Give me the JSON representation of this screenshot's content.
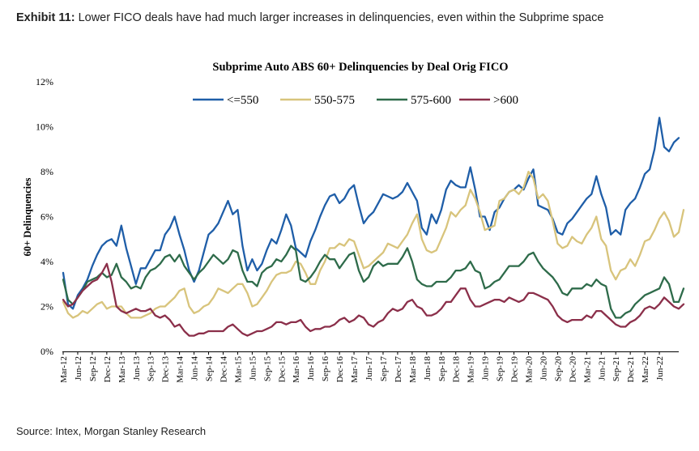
{
  "header": {
    "lead": "Exhibit 11:",
    "text": "Lower FICO deals have had much larger increases in delinquencies, even within the Subprime space"
  },
  "footer": {
    "source": "Source: Intex, Morgan Stanley Research"
  },
  "chart_data": {
    "type": "line",
    "title": "Subprime Auto ABS 60+ Delinquencies by Deal Orig FICO",
    "xlabel": "",
    "ylabel": "60+ Delinquencies",
    "ylim": [
      0,
      12
    ],
    "yticks": [
      "0%",
      "2%",
      "4%",
      "6%",
      "8%",
      "10%",
      "12%"
    ],
    "grid": false,
    "legend": "top",
    "start": "Mar-12",
    "xtick_labels": [
      "Mar-12",
      "Jun-12",
      "Sep-12",
      "Dec-12",
      "Mar-13",
      "Jun-13",
      "Sep-13",
      "Dec-13",
      "Mar-14",
      "Jun-14",
      "Sep-14",
      "Dec-14",
      "Mar-15",
      "Jun-15",
      "Sep-15",
      "Dec-15",
      "Mar-16",
      "Jun-16",
      "Sep-16",
      "Dec-16",
      "Mar-17",
      "Jun-17",
      "Sep-17",
      "Dec-17",
      "Mar-18",
      "Jun-18",
      "Sep-18",
      "Dec-18",
      "Mar-19",
      "Jun-19",
      "Sep-19",
      "Dec-19",
      "Mar-20",
      "Jun-20",
      "Sep-20",
      "Dec-20",
      "Mar-21",
      "Jun-21",
      "Sep-21",
      "Dec-21",
      "Mar-22",
      "Jun-22"
    ],
    "series": [
      {
        "name": "<=550",
        "color": "#1f5ea8",
        "values": [
          3.5,
          2.1,
          1.9,
          2.5,
          2.8,
          3.2,
          3.8,
          4.3,
          4.7,
          4.9,
          5.0,
          4.7,
          5.6,
          4.6,
          3.8,
          3.0,
          3.7,
          3.7,
          4.1,
          4.5,
          4.5,
          5.2,
          5.5,
          6.0,
          5.2,
          4.5,
          3.6,
          3.1,
          3.6,
          4.4,
          5.2,
          5.4,
          5.7,
          6.2,
          6.7,
          6.1,
          6.3,
          4.7,
          3.6,
          4.1,
          3.6,
          3.9,
          4.5,
          5.0,
          4.8,
          5.4,
          6.1,
          5.6,
          4.6,
          4.4,
          4.2,
          4.9,
          5.4,
          6.0,
          6.5,
          6.9,
          7.0,
          6.6,
          6.8,
          7.2,
          7.4,
          6.5,
          5.7,
          6.0,
          6.2,
          6.6,
          7.0,
          6.9,
          6.8,
          6.9,
          7.1,
          7.5,
          7.1,
          6.7,
          5.5,
          5.2,
          6.1,
          5.7,
          6.3,
          7.2,
          7.6,
          7.4,
          7.3,
          7.3,
          8.2,
          7.2,
          6.0,
          6.0,
          5.4,
          6.2,
          6.4,
          6.8,
          7.1,
          7.2,
          7.4,
          7.2,
          7.7,
          8.1,
          6.5,
          6.4,
          6.3,
          5.9,
          5.3,
          5.2,
          5.7,
          5.9,
          6.2,
          6.5,
          6.8,
          7.0,
          7.8,
          7.0,
          6.4,
          5.2,
          5.4,
          5.2,
          6.3,
          6.6,
          6.8,
          7.3,
          7.9,
          8.1,
          9.0,
          10.4,
          9.1,
          8.9,
          9.3,
          9.5
        ]
      },
      {
        "name": "550-575",
        "color": "#d8c47c",
        "values": [
          2.2,
          1.7,
          1.5,
          1.6,
          1.8,
          1.7,
          1.9,
          2.1,
          2.2,
          1.9,
          2.0,
          2.0,
          2.0,
          1.7,
          1.5,
          1.5,
          1.5,
          1.6,
          1.7,
          1.9,
          2.0,
          2.0,
          2.2,
          2.4,
          2.7,
          2.8,
          2.0,
          1.7,
          1.8,
          2.0,
          2.1,
          2.4,
          2.8,
          2.7,
          2.6,
          2.8,
          3.0,
          3.0,
          2.6,
          2.0,
          2.1,
          2.4,
          2.7,
          3.1,
          3.4,
          3.5,
          3.5,
          3.6,
          4.0,
          3.9,
          3.5,
          3.0,
          3.0,
          3.6,
          4.0,
          4.6,
          4.6,
          4.8,
          4.7,
          5.0,
          4.9,
          4.3,
          3.7,
          3.8,
          4.0,
          4.2,
          4.4,
          4.8,
          4.7,
          4.6,
          4.9,
          5.2,
          5.7,
          6.1,
          5.0,
          4.5,
          4.4,
          4.5,
          5.0,
          5.5,
          6.2,
          6.0,
          6.3,
          6.5,
          7.2,
          6.8,
          6.2,
          5.4,
          5.5,
          5.6,
          6.7,
          6.8,
          7.1,
          7.2,
          7.0,
          7.3,
          8.0,
          7.7,
          6.8,
          7.0,
          6.7,
          5.8,
          4.8,
          4.6,
          4.7,
          5.1,
          4.9,
          4.8,
          5.2,
          5.5,
          6.0,
          5.0,
          4.7,
          3.6,
          3.2,
          3.6,
          3.7,
          4.1,
          3.8,
          4.3,
          4.9,
          5.0,
          5.4,
          5.9,
          6.2,
          5.8,
          5.1,
          5.3,
          6.3
        ]
      },
      {
        "name": "575-600",
        "color": "#2e6b4a",
        "values": [
          3.2,
          2.3,
          2.1,
          2.4,
          2.7,
          3.1,
          3.2,
          3.3,
          3.5,
          3.3,
          3.4,
          3.9,
          3.3,
          3.1,
          2.8,
          2.9,
          2.8,
          3.3,
          3.6,
          3.7,
          3.9,
          4.2,
          4.3,
          4.0,
          4.3,
          3.8,
          3.5,
          3.2,
          3.5,
          3.7,
          4.0,
          4.3,
          4.1,
          3.9,
          4.1,
          4.5,
          4.4,
          3.6,
          3.1,
          3.1,
          2.9,
          3.5,
          3.7,
          3.8,
          4.1,
          4.0,
          4.3,
          4.7,
          4.5,
          3.2,
          3.1,
          3.3,
          3.6,
          4.0,
          4.3,
          4.1,
          4.1,
          3.7,
          4.0,
          4.3,
          4.4,
          3.6,
          3.1,
          3.3,
          3.8,
          4.0,
          3.8,
          3.9,
          3.9,
          3.9,
          4.2,
          4.6,
          4.0,
          3.2,
          3.0,
          2.9,
          2.9,
          3.1,
          3.1,
          3.1,
          3.3,
          3.6,
          3.6,
          3.7,
          4.0,
          3.6,
          3.5,
          2.8,
          2.9,
          3.1,
          3.2,
          3.5,
          3.8,
          3.8,
          3.8,
          4.0,
          4.3,
          4.4,
          4.0,
          3.7,
          3.5,
          3.3,
          3.0,
          2.6,
          2.5,
          2.8,
          2.8,
          2.8,
          3.0,
          2.9,
          3.2,
          3.0,
          2.9,
          1.9,
          1.5,
          1.5,
          1.7,
          1.8,
          2.1,
          2.3,
          2.5,
          2.6,
          2.7,
          2.8,
          3.3,
          3.0,
          2.2,
          2.2,
          2.8
        ]
      },
      {
        "name": ">600",
        "color": "#8b2f4a",
        "values": [
          2.3,
          2.0,
          2.1,
          2.4,
          2.7,
          2.9,
          3.1,
          3.2,
          3.5,
          3.9,
          3.1,
          2.0,
          1.8,
          1.7,
          1.8,
          1.9,
          1.8,
          1.8,
          1.9,
          1.6,
          1.5,
          1.6,
          1.4,
          1.1,
          1.2,
          0.9,
          0.7,
          0.7,
          0.8,
          0.8,
          0.9,
          0.9,
          0.9,
          0.9,
          1.1,
          1.2,
          1.0,
          0.8,
          0.7,
          0.8,
          0.9,
          0.9,
          1.0,
          1.1,
          1.3,
          1.3,
          1.2,
          1.3,
          1.3,
          1.4,
          1.1,
          0.9,
          1.0,
          1.0,
          1.1,
          1.1,
          1.2,
          1.4,
          1.5,
          1.3,
          1.4,
          1.6,
          1.5,
          1.2,
          1.1,
          1.3,
          1.4,
          1.7,
          1.9,
          1.8,
          1.9,
          2.2,
          2.3,
          2.0,
          1.9,
          1.6,
          1.6,
          1.7,
          1.9,
          2.2,
          2.2,
          2.5,
          2.8,
          2.8,
          2.3,
          2.0,
          2.0,
          2.1,
          2.2,
          2.3,
          2.3,
          2.2,
          2.4,
          2.3,
          2.2,
          2.3,
          2.6,
          2.6,
          2.5,
          2.4,
          2.3,
          2.0,
          1.6,
          1.4,
          1.3,
          1.4,
          1.4,
          1.4,
          1.6,
          1.5,
          1.8,
          1.8,
          1.6,
          1.4,
          1.2,
          1.1,
          1.1,
          1.3,
          1.4,
          1.6,
          1.9,
          2.0,
          1.9,
          2.1,
          2.4,
          2.2,
          2.0,
          1.9,
          2.1
        ]
      }
    ]
  }
}
